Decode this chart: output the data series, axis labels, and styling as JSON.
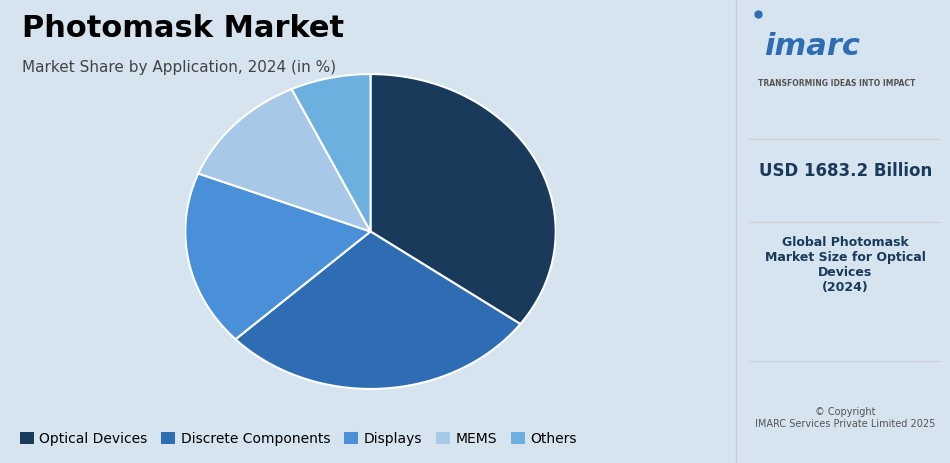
{
  "title": "Photomask Market",
  "subtitle": "Market Share by Application, 2024 (in %)",
  "slices": [
    35.0,
    28.0,
    18.0,
    12.0,
    7.0
  ],
  "labels": [
    "Optical Devices",
    "Discrete Components",
    "Displays",
    "MEMS",
    "Others"
  ],
  "colors": [
    "#1a3a5c",
    "#2e6db4",
    "#4a90d9",
    "#a8c8e8",
    "#6cb0e0"
  ],
  "background_color": "#d6e4f0",
  "right_panel_color": "#ffffff",
  "start_angle": 90,
  "title_fontsize": 22,
  "subtitle_fontsize": 11,
  "legend_fontsize": 10,
  "right_panel_title": "USD 1683.2 Billion",
  "right_panel_subtitle": "Global Photomask\nMarket Size for Optical\nDevices\n(2024)",
  "right_panel_footer": "© Copyright\nIMARC Services Private Limited 2025"
}
